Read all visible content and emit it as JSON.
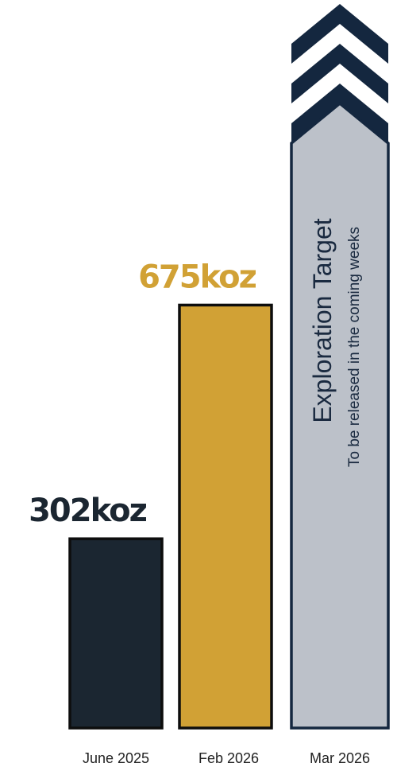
{
  "chart_data": {
    "type": "bar",
    "categories": [
      "June 2025",
      "Feb 2026",
      "Mar 2026"
    ],
    "values": [
      302,
      675,
      null
    ],
    "value_labels": [
      "302koz",
      "675koz",
      ""
    ],
    "units": "koz",
    "bar_colors": [
      "#1b2631",
      "#d1a135",
      "#bcc1c9"
    ],
    "label_colors": [
      "#1b2631",
      "#d1a135"
    ],
    "outline_color": "#0d0d0d",
    "target_outline_color": "#14273f",
    "chevron_color": "#14273f",
    "ylim": [
      0,
      1000
    ],
    "title": "",
    "xlabel": "",
    "ylabel": "",
    "grid": false,
    "exploration_target": {
      "title": "Exploration Target",
      "subtitle": "To be released in the coming weeks",
      "indicator": "up-chevrons-icon"
    }
  }
}
